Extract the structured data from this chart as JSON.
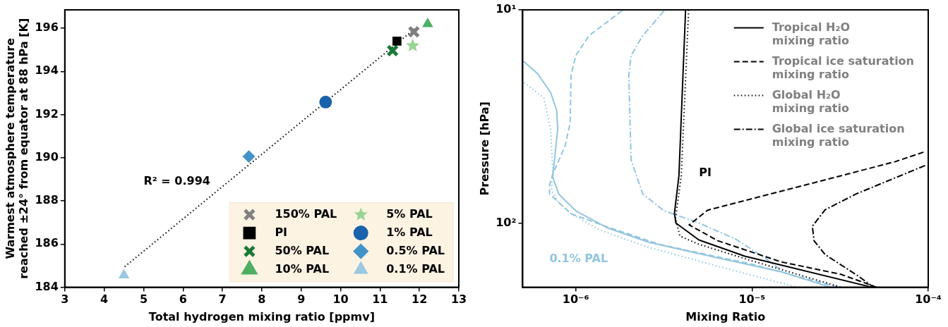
{
  "chart_data": [
    {
      "type": "scatter",
      "xlabel": "Total hydrogen mixing ratio [ppmv]",
      "ylabel": "Warmest atmosphere temperature\nreached ±24° from equator at 88 hPa [K]",
      "xlim": [
        3,
        13
      ],
      "xticks": [
        3,
        4,
        5,
        6,
        7,
        8,
        9,
        10,
        11,
        12,
        13
      ],
      "ylim": [
        184,
        196.85
      ],
      "yticks": [
        184,
        186,
        188,
        190,
        192,
        194,
        196
      ],
      "legend": "bottom right",
      "annotations": [
        "R² = 0.994"
      ],
      "series": [
        {
          "name": "150% PAL",
          "color": "#808080",
          "marker": "cross",
          "x": [
            11.86
          ],
          "values": [
            195.83
          ]
        },
        {
          "name": "PI",
          "color": "#000000",
          "marker": "square",
          "x": [
            11.43
          ],
          "values": [
            195.4
          ]
        },
        {
          "name": "50% PAL",
          "color": "#1a7a35",
          "marker": "cross",
          "x": [
            11.32
          ],
          "values": [
            194.96
          ]
        },
        {
          "name": "10% PAL",
          "color": "#4daf62",
          "marker": "triangle",
          "x": [
            12.21
          ],
          "values": [
            196.2
          ]
        },
        {
          "name": "5% PAL",
          "color": "#98d594",
          "marker": "star",
          "x": [
            11.83
          ],
          "values": [
            195.19
          ]
        },
        {
          "name": "1% PAL",
          "color": "#1a62ab",
          "marker": "circle",
          "x": [
            9.62
          ],
          "values": [
            192.58
          ]
        },
        {
          "name": "0.5% PAL",
          "color": "#4393c9",
          "marker": "diamond",
          "x": [
            7.67
          ],
          "values": [
            190.06
          ]
        },
        {
          "name": "0.1% PAL",
          "color": "#9ac8e0",
          "marker": "triangle",
          "x": [
            4.5
          ],
          "values": [
            184.56
          ]
        },
        {
          "type": "line",
          "color": "#000000",
          "line_style": "dotted",
          "marker": "none",
          "x": [
            4.52,
            11.94
          ],
          "values": [
            184.95,
            196.06
          ]
        }
      ]
    },
    {
      "type": "line",
      "xlabel": "Mixing Ratio",
      "ylabel": "Pressure [hPa]",
      "log": "xy",
      "xlim": [
        5e-07,
        0.0001
      ],
      "xticks": [
        {
          "value": 1e-06,
          "label": "10⁻⁶"
        },
        {
          "value": 1e-05,
          "label": "10⁻⁵"
        },
        {
          "value": 0.0001,
          "label": "10⁻⁴"
        }
      ],
      "ylim": [
        200,
        10
      ],
      "yticks": [
        {
          "value": 10,
          "label": "10¹"
        },
        {
          "value": 100,
          "label": "10²"
        }
      ],
      "legend": "top right",
      "annotations": [
        "PI",
        "0.1% PAL"
      ],
      "series": [
        {
          "name": "Tropical H₂O\nmixing ratio",
          "color": "#000000",
          "line_style": "solid",
          "x": [
            4.2e-06,
            3.85e-06,
            3.63e-06,
            3.7e-06,
            5e-06,
            9.1e-06,
            4.8e-05
          ],
          "values": [
            10,
            60,
            90,
            100,
            120,
            143,
            200
          ]
        },
        {
          "name": "Tropical ice saturation\nmixing ratio",
          "color": "#000000",
          "line_style": "dashed",
          "x": [
            9.4e-05,
            6.5e-05,
            2.2e-05,
            5.6e-06,
            4.4e-06,
            6.4e-06,
            1.46e-05,
            3.2e-05,
            5.1e-05
          ],
          "values": [
            46.5,
            51.5,
            65,
            87,
            102,
            121,
            152,
            174,
            200
          ]
        },
        {
          "name": "Global H₂O\nmixing ratio",
          "color": "#000000",
          "line_style": "dotted",
          "x": [
            4.37e-06,
            3.97e-06,
            3.68e-06,
            3.9e-06,
            4.9e-06,
            9.9e-06,
            3.2e-05
          ],
          "values": [
            10,
            60,
            95,
            115,
            125,
            150,
            200
          ]
        },
        {
          "name": "Global ice saturation\nmixing ratio",
          "color": "#000000",
          "line_style": "dashdot",
          "x": [
            9.6e-05,
            3.9e-05,
            2.6e-05,
            2.2e-05,
            2.25e-05,
            2.6e-05,
            4e-05,
            4.9e-05
          ],
          "values": [
            53.7,
            73,
            86.6,
            103.5,
            121,
            140.5,
            177,
            200
          ]
        },
        {
          "color": "#92c5de",
          "line_style": "solid",
          "x": [
            5.05e-07,
            6.1e-07,
            7.2e-07,
            7.8e-07,
            7.9e-07,
            7.4e-07,
            8e-07,
            1e-06,
            1.5e-06,
            2.6e-06,
            6.7e-06,
            1.46e-05,
            2.8e-05
          ],
          "values": [
            17.4,
            20,
            24.4,
            29.7,
            36.2,
            60.8,
            73,
            87.6,
            105,
            123,
            147,
            169,
            200
          ]
        },
        {
          "color": "#92c5de",
          "line_style": "dashed",
          "x": [
            1.83e-06,
            1.19e-06,
            1e-06,
            9.4e-07,
            9.3e-07,
            8.7e-07,
            7.4e-07,
            7.1e-07,
            7.1e-07,
            9.4e-07,
            1.5e-06,
            3e-06,
            1e-05,
            3.1e-05
          ],
          "values": [
            10.1,
            13.2,
            16.4,
            20.3,
            34,
            43.5,
            59,
            66.6,
            73,
            90.4,
            104,
            126,
            156,
            200
          ]
        },
        {
          "color": "#92c5de",
          "line_style": "dotted",
          "x": [
            5.1e-07,
            6.6e-07,
            7.2e-07,
            7.4e-07,
            7.3e-07,
            8e-07,
            9.4e-07,
            1.39e-06,
            2.6e-06,
            6.7e-06,
            1.8e-05
          ],
          "values": [
            21.9,
            25.9,
            36.2,
            55.5,
            70.7,
            80,
            90.4,
            108.4,
            130,
            161,
            200
          ]
        },
        {
          "color": "#92c5de",
          "line_style": "dashdot",
          "x": [
            3.17e-06,
            2.4e-06,
            2.06e-06,
            2e-06,
            2.06e-06,
            2.4e-06,
            3.17e-06,
            4.9e-06,
            8.1e-06,
            1.2e-05,
            1.46e-05
          ],
          "values": [
            10.1,
            13.2,
            16.4,
            20.3,
            50.6,
            73,
            87.6,
            99.2,
            119,
            147,
            166
          ]
        }
      ]
    }
  ]
}
